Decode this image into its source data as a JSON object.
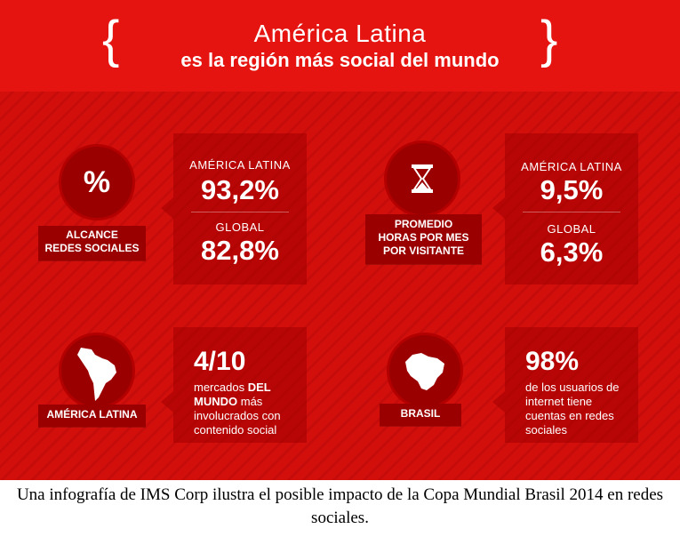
{
  "header": {
    "title_line1": "América Latina",
    "title_line2": "es la región más social del mundo"
  },
  "colors": {
    "background_red": "#e2120e",
    "dark_red": "#9b0000",
    "text": "#ffffff"
  },
  "blocks": {
    "alcance": {
      "icon": "percent-icon",
      "label": "ALCANCE\nREDES SOCIALES",
      "region_label": "AMÉRICA LATINA",
      "region_value": "93,2%",
      "global_label": "GLOBAL",
      "global_value": "82,8%"
    },
    "horas": {
      "icon": "hourglass-icon",
      "label": "PROMEDIO\nHORAS POR MES\nPOR VISITANTE",
      "region_label": "AMÉRICA LATINA",
      "region_value": "9,5%",
      "global_label": "GLOBAL",
      "global_value": "6,3%"
    },
    "america": {
      "icon": "latin-america-map-icon",
      "label": "AMÉRICA LATINA",
      "big": "4/10",
      "text_pre": "mercados",
      "text_bold": "DEL MUNDO",
      "text_post": "más involucrados con contenido social"
    },
    "brasil": {
      "icon": "brazil-map-icon",
      "label": "BRASIL",
      "big": "98%",
      "text": "de los usuarios de internet tiene cuentas en redes sociales"
    }
  },
  "caption": "Una infografía de IMS Corp ilustra el posible impacto de la Copa Mundial Brasil 2014 en redes sociales."
}
